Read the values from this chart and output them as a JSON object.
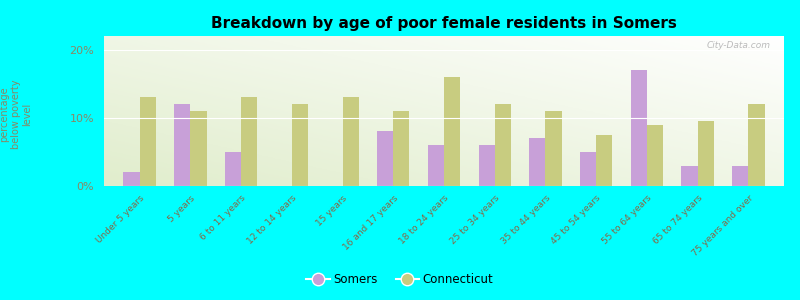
{
  "title": "Breakdown by age of poor female residents in Somers",
  "ylabel": "percentage\nbelow poverty\nlevel",
  "categories": [
    "Under 5 years",
    "5 years",
    "6 to 11 years",
    "12 to 14 years",
    "15 years",
    "16 and 17 years",
    "18 to 24 years",
    "25 to 34 years",
    "35 to 44 years",
    "45 to 54 years",
    "55 to 64 years",
    "65 to 74 years",
    "75 years and over"
  ],
  "somers_vals": [
    2.0,
    12.0,
    5.0,
    0.0,
    0.0,
    8.0,
    6.0,
    6.0,
    7.0,
    5.0,
    17.0,
    3.0,
    3.0
  ],
  "connecticut_vals": [
    13.0,
    11.0,
    13.0,
    12.0,
    13.0,
    11.0,
    16.0,
    12.0,
    11.0,
    7.5,
    9.0,
    9.5,
    12.0
  ],
  "somers_color": "#c8a0d8",
  "connecticut_color": "#c8cc80",
  "background_color": "#00ffff",
  "ylim": [
    0,
    22
  ],
  "yticks": [
    0,
    10,
    20
  ],
  "ytick_labels": [
    "0%",
    "10%",
    "20%"
  ],
  "tick_color": "#888866",
  "ylabel_color": "#888866",
  "xtick_color": "#886644"
}
